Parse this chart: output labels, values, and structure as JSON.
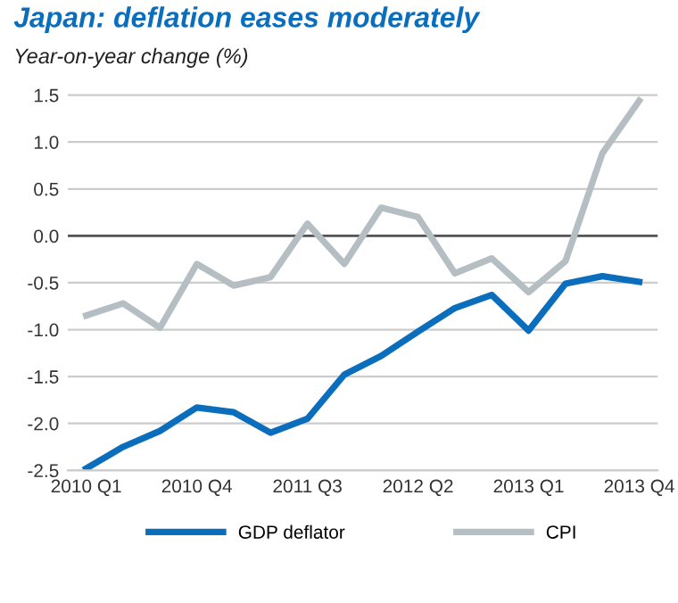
{
  "chart_data": {
    "type": "line",
    "title": "Japan: deflation eases moderately",
    "subtitle": "Year-on-year change (%)",
    "categories": [
      "2010 Q1",
      null,
      null,
      "2010 Q4",
      null,
      null,
      "2011 Q3",
      null,
      null,
      "2012 Q2",
      null,
      null,
      "2013 Q1",
      null,
      null,
      "2013 Q4"
    ],
    "series": [
      {
        "name": "GDP deflator",
        "color": "#0a6ebd",
        "values": [
          -2.48,
          -2.25,
          -2.08,
          -1.83,
          -1.88,
          -2.1,
          -1.95,
          -1.48,
          -1.28,
          -1.02,
          -0.77,
          -0.63,
          -1.01,
          -0.51,
          -0.43,
          -0.49
        ]
      },
      {
        "name": "CPI",
        "color": "#b5bec3",
        "values": [
          -0.85,
          -0.72,
          -0.98,
          -0.3,
          -0.53,
          -0.44,
          0.13,
          -0.3,
          0.3,
          0.2,
          -0.4,
          -0.24,
          -0.6,
          -0.27,
          0.88,
          1.44
        ]
      }
    ],
    "ylim": [
      -2.5,
      1.55
    ],
    "yticks": [
      {
        "value": -2.5,
        "label": "-2.5"
      },
      {
        "value": -2.0,
        "label": "-2.0"
      },
      {
        "value": -1.5,
        "label": "-1.5"
      },
      {
        "value": -1.0,
        "label": "-1.0"
      },
      {
        "value": -0.5,
        "label": "-0.5"
      },
      {
        "value": 0.0,
        "label": "0.0"
      },
      {
        "value": 0.5,
        "label": "0.5"
      },
      {
        "value": 1.0,
        "label": "1.0"
      },
      {
        "value": 1.5,
        "label": "1.5"
      }
    ],
    "ref_lines": [
      {
        "axis": "y",
        "value": 0,
        "color": "#555555"
      }
    ],
    "grid": "y",
    "legend": "bottom",
    "marker": "none",
    "line_style": "solid"
  }
}
